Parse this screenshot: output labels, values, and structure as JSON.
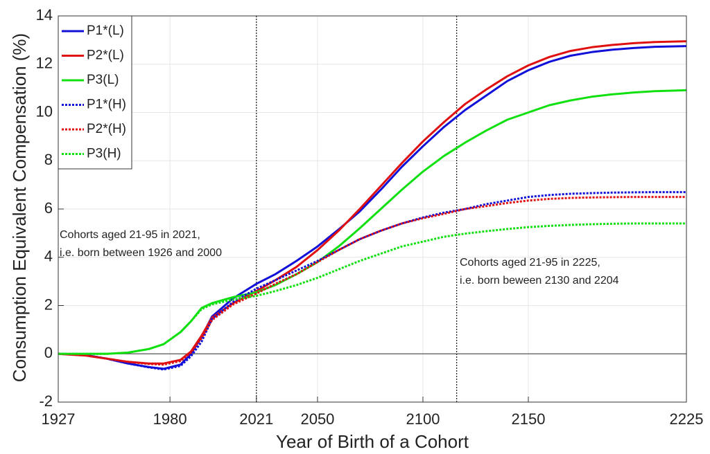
{
  "chart_data": {
    "type": "line",
    "x_label": "Year of Birth of a Cohort",
    "y_label": "Consumption Equivalent Compensation (%)",
    "xlim": [
      1927,
      2225
    ],
    "xticks": [
      1927,
      1980,
      2021,
      2050,
      2100,
      2150,
      2225
    ],
    "ylim": [
      -2,
      14
    ],
    "yticks": [
      -2,
      0,
      2,
      4,
      6,
      8,
      10,
      12,
      14
    ],
    "grid": true,
    "legend": "upper left",
    "vlines": [
      2021,
      2116
    ],
    "annotations": [
      [
        "Cohorts aged 21-95 in 2021,",
        "i.e. born between 1926 and 2000"
      ],
      [
        "Cohorts aged 21-95 in 2225,",
        "i.e. born beween 2130 and 2204"
      ]
    ],
    "x": [
      1927,
      1940,
      1950,
      1960,
      1970,
      1977,
      1985,
      1990,
      1995,
      2000,
      2010,
      2021,
      2030,
      2040,
      2050,
      2060,
      2070,
      2080,
      2090,
      2100,
      2110,
      2120,
      2130,
      2140,
      2150,
      2160,
      2170,
      2180,
      2190,
      2200,
      2210,
      2225
    ],
    "series": [
      {
        "name": "P1*(L)",
        "color": "#1010d8",
        "line_style": "solid",
        "values": [
          0,
          -0.05,
          -0.2,
          -0.4,
          -0.55,
          -0.62,
          -0.45,
          0,
          0.7,
          1.55,
          2.3,
          2.9,
          3.3,
          3.85,
          4.45,
          5.15,
          5.9,
          6.8,
          7.75,
          8.6,
          9.4,
          10.1,
          10.7,
          11.3,
          11.75,
          12.1,
          12.35,
          12.5,
          12.6,
          12.67,
          12.72,
          12.75
        ]
      },
      {
        "name": "P2*(L)",
        "color": "#e01010",
        "line_style": "solid",
        "values": [
          0,
          -0.07,
          -0.2,
          -0.33,
          -0.4,
          -0.4,
          -0.25,
          0.1,
          0.75,
          1.5,
          2.1,
          2.6,
          3.05,
          3.6,
          4.3,
          5.1,
          6.0,
          6.95,
          7.9,
          8.8,
          9.6,
          10.35,
          10.95,
          11.5,
          11.95,
          12.3,
          12.55,
          12.7,
          12.8,
          12.87,
          12.92,
          12.95
        ]
      },
      {
        "name": "P3(L)",
        "color": "#10e010",
        "line_style": "solid",
        "values": [
          0,
          0,
          0,
          0.05,
          0.2,
          0.4,
          0.9,
          1.35,
          1.9,
          2.1,
          2.35,
          2.55,
          2.85,
          3.3,
          3.8,
          4.45,
          5.2,
          6.0,
          6.8,
          7.55,
          8.2,
          8.75,
          9.25,
          9.7,
          10.0,
          10.3,
          10.5,
          10.65,
          10.75,
          10.83,
          10.88,
          10.92
        ]
      },
      {
        "name": "P1*(H)",
        "color": "#1010d8",
        "line_style": "dotted",
        "values": [
          0,
          -0.05,
          -0.2,
          -0.4,
          -0.56,
          -0.65,
          -0.5,
          -0.1,
          0.5,
          1.45,
          2.15,
          2.7,
          3.05,
          3.45,
          3.85,
          4.3,
          4.75,
          5.1,
          5.4,
          5.65,
          5.85,
          6.0,
          6.2,
          6.35,
          6.5,
          6.58,
          6.63,
          6.66,
          6.68,
          6.69,
          6.7,
          6.7
        ]
      },
      {
        "name": "P2*(H)",
        "color": "#e01010",
        "line_style": "dotted",
        "values": [
          0,
          -0.07,
          -0.2,
          -0.33,
          -0.42,
          -0.45,
          -0.3,
          0.05,
          0.65,
          1.4,
          2.05,
          2.5,
          2.9,
          3.3,
          3.8,
          4.3,
          4.75,
          5.1,
          5.4,
          5.62,
          5.8,
          6.0,
          6.12,
          6.25,
          6.35,
          6.42,
          6.46,
          6.48,
          6.49,
          6.5,
          6.5,
          6.5
        ]
      },
      {
        "name": "P3(H)",
        "color": "#10e010",
        "line_style": "dotted",
        "values": [
          0,
          0,
          0,
          0.05,
          0.2,
          0.4,
          0.9,
          1.35,
          1.85,
          2.05,
          2.25,
          2.4,
          2.6,
          2.85,
          3.15,
          3.5,
          3.85,
          4.15,
          4.45,
          4.65,
          4.85,
          4.98,
          5.08,
          5.17,
          5.25,
          5.3,
          5.34,
          5.37,
          5.39,
          5.4,
          5.4,
          5.4
        ]
      }
    ]
  }
}
